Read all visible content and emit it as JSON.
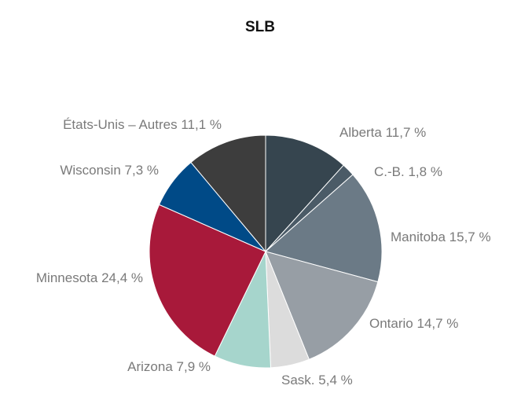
{
  "chart_data": {
    "type": "pie",
    "title": "SLB",
    "categories": [
      "Alberta",
      "C.-B.",
      "Manitoba",
      "Ontario",
      "Sask.",
      "Arizona",
      "Minnesota",
      "Wisconsin",
      "États-Unis – Autres"
    ],
    "values": [
      11.7,
      1.8,
      15.7,
      14.7,
      5.4,
      7.9,
      24.4,
      7.3,
      11.1
    ],
    "value_labels": [
      "11,7 %",
      "1,8 %",
      "15,7 %",
      "14,7 %",
      "5,4 %",
      "7,9 %",
      "24,4 %",
      "7,3 %",
      "11,1 %"
    ],
    "colors": [
      "#36454f",
      "#4b5b67",
      "#6b7a86",
      "#979ea5",
      "#dcdcdc",
      "#a6d5cc",
      "#a8193a",
      "#004a87",
      "#3d3d3d"
    ]
  }
}
